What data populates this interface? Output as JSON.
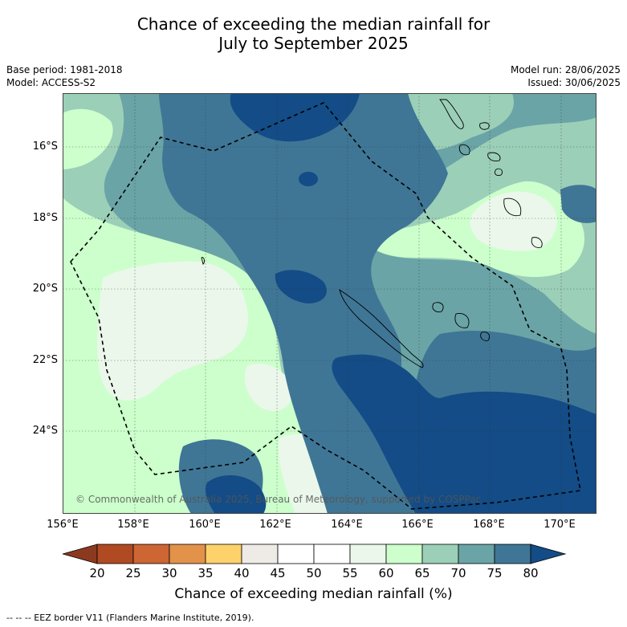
{
  "title_line1": "Chance of exceeding the median rainfall for",
  "title_line2": "July to September 2025",
  "base_period": "Base period: 1981-2018",
  "model": "Model: ACCESS-S2",
  "model_run": "Model run: 28/06/2025",
  "issued": "Issued: 30/06/2025",
  "copyright": "© Commonwealth of Australia 2025, Bureau of Meteorology, supported by COSPPac",
  "lat_labels": [
    "16°S",
    "18°S",
    "20°S",
    "22°S",
    "24°S"
  ],
  "lon_labels": [
    "156°E",
    "158°E",
    "160°E",
    "162°E",
    "164°E",
    "166°E",
    "168°E",
    "170°E"
  ],
  "colorbar": {
    "title": "Chance of exceeding median rainfall (%)",
    "ticks": [
      "20",
      "25",
      "30",
      "35",
      "40",
      "45",
      "50",
      "55",
      "60",
      "65",
      "70",
      "75",
      "80"
    ],
    "colors": [
      "#8b3a20",
      "#b04a22",
      "#cd6633",
      "#e3924a",
      "#fdd26a",
      "#eeebe6",
      "#ffffff",
      "#ffffff",
      "#ebf7ea",
      "#ccffcc",
      "#9ccfb8",
      "#6aa4a6",
      "#3f7696",
      "#134c86"
    ]
  },
  "legend_footnote": "--  --  -- EEZ border V11 (Flanders Marine Institute, 2019).",
  "colors": {
    "c80plus": "#134c86",
    "c75_80": "#3f7696",
    "c70_75": "#6aa4a6",
    "c65_70": "#9ccfb8",
    "c60_65": "#ccffcc",
    "c55_60": "#ebf7ea"
  }
}
